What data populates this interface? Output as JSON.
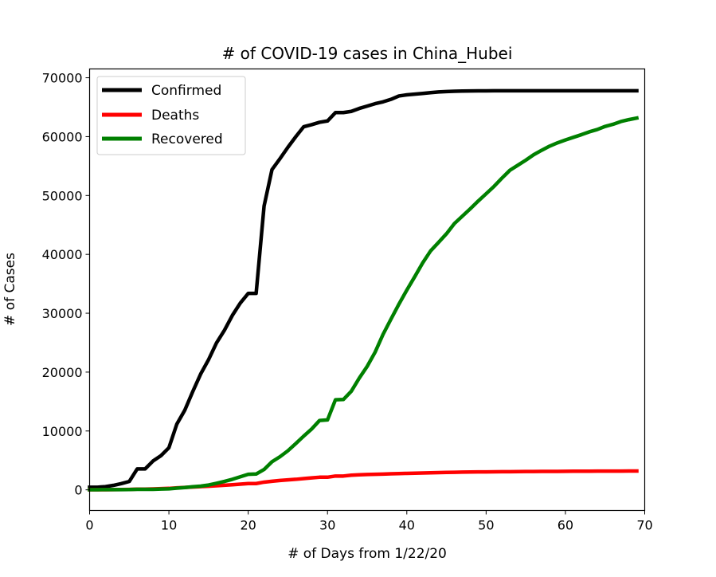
{
  "chart_data": {
    "type": "line",
    "title": "# of COVID-19 cases in China_Hubei",
    "xlabel": "# of Days from 1/22/20",
    "ylabel": "# of Cases",
    "xlim": [
      0,
      70
    ],
    "ylim": [
      -3500,
      71500
    ],
    "xticks": [
      0,
      10,
      20,
      30,
      40,
      50,
      60,
      70
    ],
    "yticks": [
      0,
      10000,
      20000,
      30000,
      40000,
      50000,
      60000,
      70000
    ],
    "xtick_labels": [
      "0",
      "10",
      "20",
      "30",
      "40",
      "50",
      "60",
      "70"
    ],
    "ytick_labels": [
      "0",
      "10000",
      "20000",
      "30000",
      "40000",
      "50000",
      "60000",
      "70000"
    ],
    "grid": false,
    "legend_position": "upper-left",
    "series": [
      {
        "name": "Confirmed",
        "color": "#000000",
        "x": [
          0,
          1,
          2,
          3,
          4,
          5,
          6,
          7,
          8,
          9,
          10,
          11,
          12,
          13,
          14,
          15,
          16,
          17,
          18,
          19,
          20,
          21,
          22,
          23,
          24,
          25,
          26,
          27,
          28,
          29,
          30,
          31,
          32,
          33,
          34,
          35,
          36,
          37,
          38,
          39,
          40,
          41,
          42,
          43,
          44,
          45,
          46,
          47,
          48,
          49,
          50,
          51,
          52,
          53,
          54,
          55,
          56,
          57,
          58,
          59,
          60,
          61,
          62,
          63,
          64,
          65,
          66,
          67,
          68,
          69
        ],
        "values": [
          444,
          444,
          549,
          761,
          1058,
          1423,
          3554,
          3554,
          4903,
          5806,
          7153,
          11177,
          13522,
          16678,
          19665,
          22112,
          24953,
          27100,
          29631,
          31728,
          33366,
          33366,
          48206,
          54406,
          56249,
          58182,
          59989,
          61682,
          62031,
          62442,
          62662,
          64084,
          64084,
          64287,
          64786,
          65187,
          65596,
          65914,
          66337,
          66907,
          67103,
          67217,
          67332,
          67466,
          67592,
          67666,
          67707,
          67743,
          67760,
          67773,
          67781,
          67786,
          67790,
          67794,
          67798,
          67799,
          67800,
          67800,
          67800,
          67800,
          67800,
          67800,
          67800,
          67800,
          67800,
          67800,
          67800,
          67800,
          67800,
          67800
        ]
      },
      {
        "name": "Deaths",
        "color": "#ff0000",
        "x": [
          0,
          1,
          2,
          3,
          4,
          5,
          6,
          7,
          8,
          9,
          10,
          11,
          12,
          13,
          14,
          15,
          16,
          17,
          18,
          19,
          20,
          21,
          22,
          23,
          24,
          25,
          26,
          27,
          28,
          29,
          30,
          31,
          32,
          33,
          34,
          35,
          36,
          37,
          38,
          39,
          40,
          41,
          42,
          43,
          44,
          45,
          46,
          47,
          48,
          49,
          50,
          51,
          52,
          53,
          54,
          55,
          56,
          57,
          58,
          59,
          60,
          61,
          62,
          63,
          64,
          65,
          66,
          67,
          68,
          69
        ],
        "values": [
          17,
          17,
          24,
          40,
          52,
          76,
          125,
          125,
          162,
          204,
          249,
          350,
          414,
          479,
          549,
          618,
          699,
          780,
          871,
          974,
          1068,
          1068,
          1310,
          1457,
          1596,
          1696,
          1789,
          1921,
          2029,
          2144,
          2144,
          2346,
          2346,
          2495,
          2563,
          2615,
          2641,
          2682,
          2727,
          2761,
          2803,
          2835,
          2871,
          2902,
          2931,
          2959,
          2986,
          3008,
          3024,
          3046,
          3056,
          3062,
          3075,
          3085,
          3099,
          3111,
          3122,
          3130,
          3133,
          3139,
          3153,
          3160,
          3169,
          3173,
          3177,
          3182,
          3186,
          3187,
          3193,
          3199
        ]
      },
      {
        "name": "Recovered",
        "color": "#008000",
        "x": [
          0,
          1,
          2,
          3,
          4,
          5,
          6,
          7,
          8,
          9,
          10,
          11,
          12,
          13,
          14,
          15,
          16,
          17,
          18,
          19,
          20,
          21,
          22,
          23,
          24,
          25,
          26,
          27,
          28,
          29,
          30,
          31,
          32,
          33,
          34,
          35,
          36,
          37,
          38,
          39,
          40,
          41,
          42,
          43,
          44,
          45,
          46,
          47,
          48,
          49,
          50,
          51,
          52,
          53,
          54,
          55,
          56,
          57,
          58,
          59,
          60,
          61,
          62,
          63,
          64,
          65,
          66,
          67,
          68,
          69
        ],
        "values": [
          28,
          28,
          31,
          32,
          42,
          45,
          80,
          88,
          90,
          141,
          168,
          295,
          386,
          522,
          633,
          817,
          1115,
          1439,
          1795,
          2222,
          2639,
          2686,
          3459,
          4774,
          5623,
          6639,
          7862,
          9128,
          10337,
          11788,
          11881,
          15299,
          15343,
          16748,
          18971,
          20969,
          23383,
          26403,
          28993,
          31536,
          33934,
          36208,
          38557,
          40592,
          42033,
          43500,
          45235,
          46488,
          47743,
          49056,
          50298,
          51553,
          52960,
          54288,
          55142,
          56003,
          56927,
          57682,
          58382,
          58946,
          59433,
          59882,
          60324,
          60811,
          61201,
          61732,
          62098,
          62570,
          62889,
          63153
        ]
      }
    ]
  }
}
